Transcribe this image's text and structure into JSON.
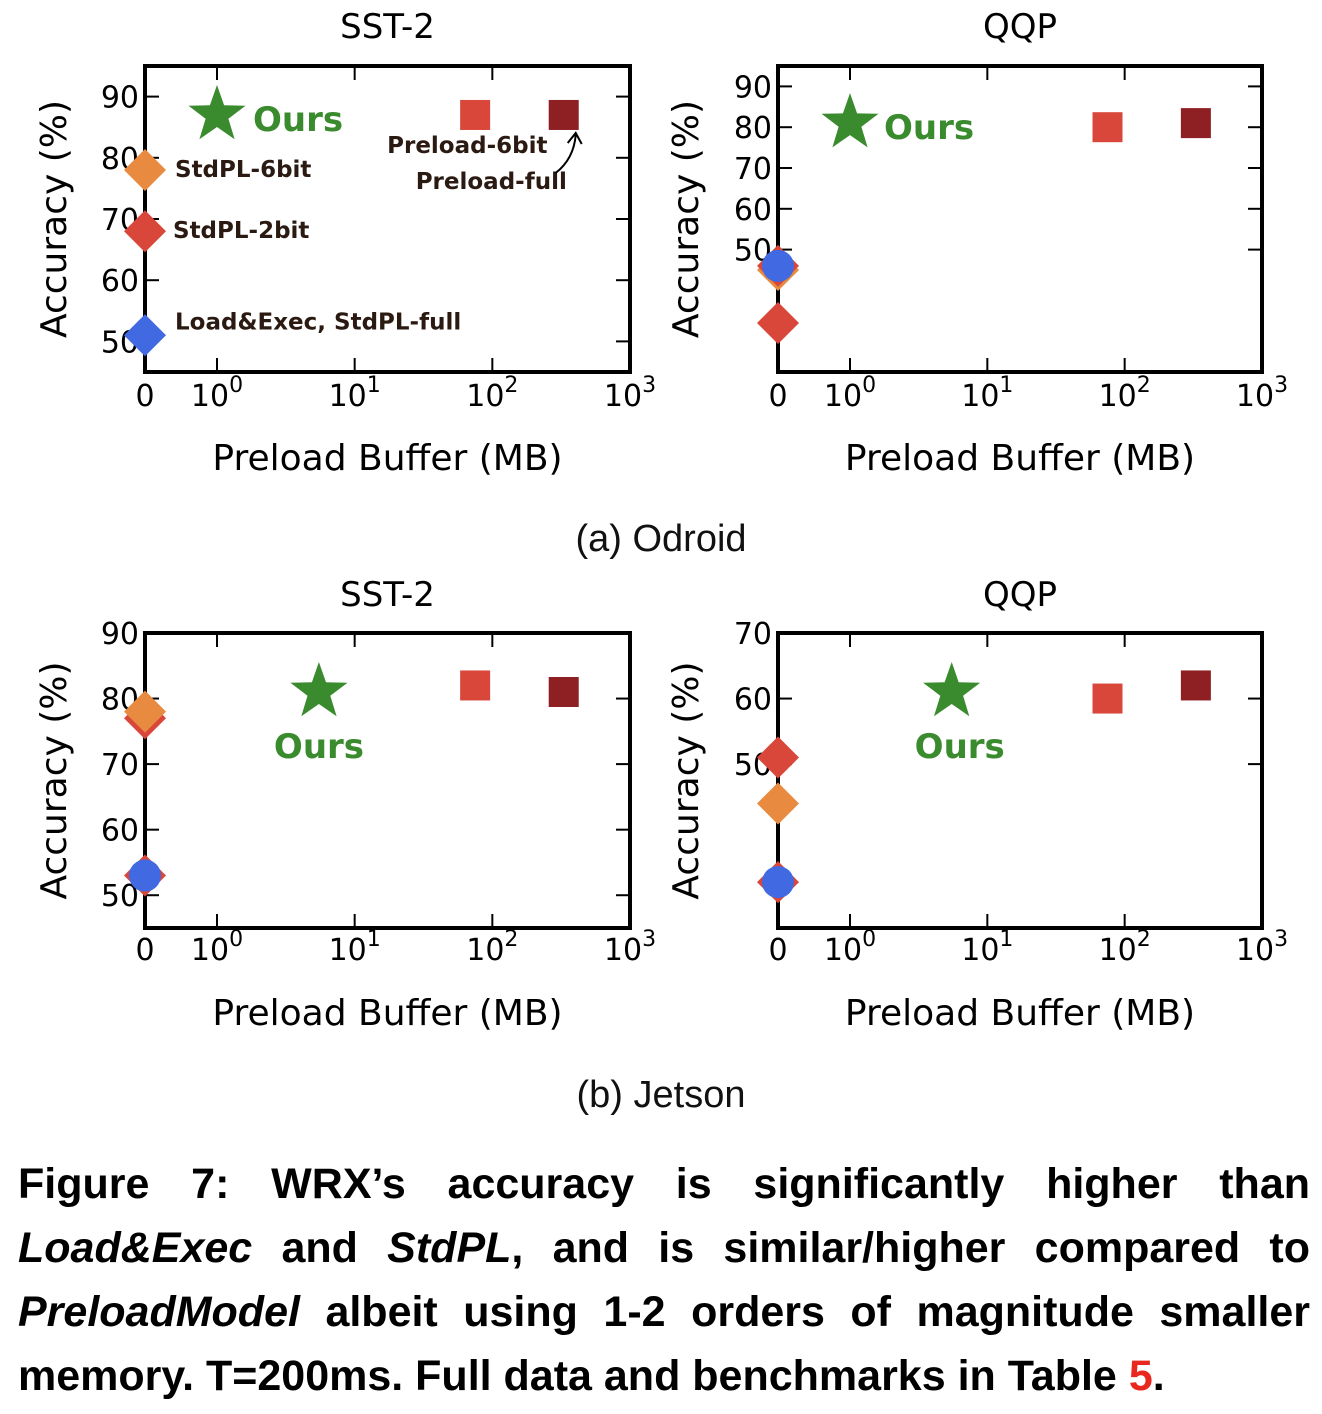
{
  "figure": {
    "subcaption_a": "(a) Odroid",
    "subcaption_b": "(b) Jetson",
    "caption": {
      "label": "Figure 7:",
      "seg1": " WRX’s accuracy is significantly higher than ",
      "em1": "Load&Exec",
      "seg2": " and ",
      "em2": "StdPL",
      "seg3": ", and is similar/higher compared to ",
      "em3": "PreloadModel",
      "seg4": " albeit using 1-2 orders of magnitude smaller memory. T=200ms. Full data and benchmarks in Table ",
      "ref": "5",
      "seg5": "."
    }
  },
  "colors": {
    "ours": "#3a8a2e",
    "stdpl6": "#e88b40",
    "stdpl2": "#d9473a",
    "loadexec": "#4169e1",
    "preload6": "#d9473a",
    "preloadfull": "#8e1f22"
  },
  "chart_data": [
    {
      "type": "scatter",
      "title": "SST-2",
      "group": "Odroid",
      "xlabel": "Preload Buffer (MB)",
      "ylabel": "Accuracy (%)",
      "xscale": "symlog",
      "xlim": [
        0,
        1000
      ],
      "ylim": [
        45,
        95
      ],
      "xticks": [
        "0",
        "10^0",
        "10^1",
        "10^2",
        "10^3"
      ],
      "yticks": [
        50,
        60,
        70,
        80,
        90
      ],
      "series": [
        {
          "key": "ours",
          "marker": "star",
          "x": 1,
          "y": 87,
          "label": "Ours"
        },
        {
          "key": "stdpl6",
          "marker": "diamond",
          "x": 0,
          "y": 78,
          "label": "StdPL-6bit"
        },
        {
          "key": "stdpl2",
          "marker": "diamond",
          "x": 0,
          "y": 68,
          "label": "StdPL-2bit"
        },
        {
          "key": "loadexec",
          "marker": "diamond",
          "x": 0,
          "y": 51,
          "label": "Load&Exec, StdPL-full"
        },
        {
          "key": "preload6",
          "marker": "square",
          "x": 75,
          "y": 87,
          "label": "Preload-6bit"
        },
        {
          "key": "preloadfull",
          "marker": "square",
          "x": 330,
          "y": 87,
          "label": "Preload-full"
        }
      ]
    },
    {
      "type": "scatter",
      "title": "QQP",
      "group": "Odroid",
      "xlabel": "Preload Buffer (MB)",
      "ylabel": "Accuracy (%)",
      "xscale": "symlog",
      "xlim": [
        0,
        1000
      ],
      "ylim": [
        20,
        95
      ],
      "xticks": [
        "0",
        "10^0",
        "10^1",
        "10^2",
        "10^3"
      ],
      "yticks": [
        50,
        60,
        70,
        80,
        90
      ],
      "series": [
        {
          "key": "ours",
          "marker": "star",
          "x": 1,
          "y": 81,
          "label": "Ours"
        },
        {
          "key": "stdpl6",
          "marker": "diamond",
          "x": 0,
          "y": 45
        },
        {
          "key": "stdpl2",
          "marker": "diamond",
          "x": 0,
          "y": 46
        },
        {
          "key": "stdpl2",
          "marker": "diamond",
          "x": 0,
          "y": 32
        },
        {
          "key": "loadexec",
          "marker": "circle",
          "x": 0,
          "y": 46
        },
        {
          "key": "preload6",
          "marker": "square",
          "x": 75,
          "y": 80
        },
        {
          "key": "preloadfull",
          "marker": "square",
          "x": 330,
          "y": 81
        }
      ]
    },
    {
      "type": "scatter",
      "title": "SST-2",
      "group": "Jetson",
      "xlabel": "Preload Buffer (MB)",
      "ylabel": "Accuracy (%)",
      "xscale": "symlog",
      "xlim": [
        0,
        1000
      ],
      "ylim": [
        45,
        90
      ],
      "xticks": [
        "0",
        "10^0",
        "10^1",
        "10^2",
        "10^3"
      ],
      "yticks": [
        50,
        60,
        70,
        80,
        90
      ],
      "series": [
        {
          "key": "ours",
          "marker": "star",
          "x": 5.5,
          "y": 81,
          "label": "Ours"
        },
        {
          "key": "stdpl2",
          "marker": "diamond",
          "x": 0,
          "y": 77
        },
        {
          "key": "stdpl6",
          "marker": "diamond",
          "x": 0,
          "y": 78
        },
        {
          "key": "stdpl2",
          "marker": "diamond",
          "x": 0,
          "y": 53
        },
        {
          "key": "loadexec",
          "marker": "circle",
          "x": 0,
          "y": 53
        },
        {
          "key": "preload6",
          "marker": "square",
          "x": 75,
          "y": 82
        },
        {
          "key": "preloadfull",
          "marker": "square",
          "x": 330,
          "y": 81
        }
      ]
    },
    {
      "type": "scatter",
      "title": "QQP",
      "group": "Jetson",
      "xlabel": "Preload Buffer (MB)",
      "ylabel": "Accuracy (%)",
      "xscale": "symlog",
      "xlim": [
        0,
        1000
      ],
      "ylim": [
        25,
        70
      ],
      "xticks": [
        "0",
        "10^0",
        "10^1",
        "10^2",
        "10^3"
      ],
      "yticks": [
        50,
        60,
        70
      ],
      "series": [
        {
          "key": "ours",
          "marker": "star",
          "x": 5.5,
          "y": 61,
          "label": "Ours"
        },
        {
          "key": "stdpl2",
          "marker": "diamond",
          "x": 0,
          "y": 51
        },
        {
          "key": "stdpl6",
          "marker": "diamond",
          "x": 0,
          "y": 44
        },
        {
          "key": "stdpl2",
          "marker": "diamond",
          "x": 0,
          "y": 32
        },
        {
          "key": "loadexec",
          "marker": "circle",
          "x": 0,
          "y": 32
        },
        {
          "key": "preload6",
          "marker": "square",
          "x": 75,
          "y": 60
        },
        {
          "key": "preloadfull",
          "marker": "square",
          "x": 330,
          "y": 62
        }
      ]
    }
  ]
}
